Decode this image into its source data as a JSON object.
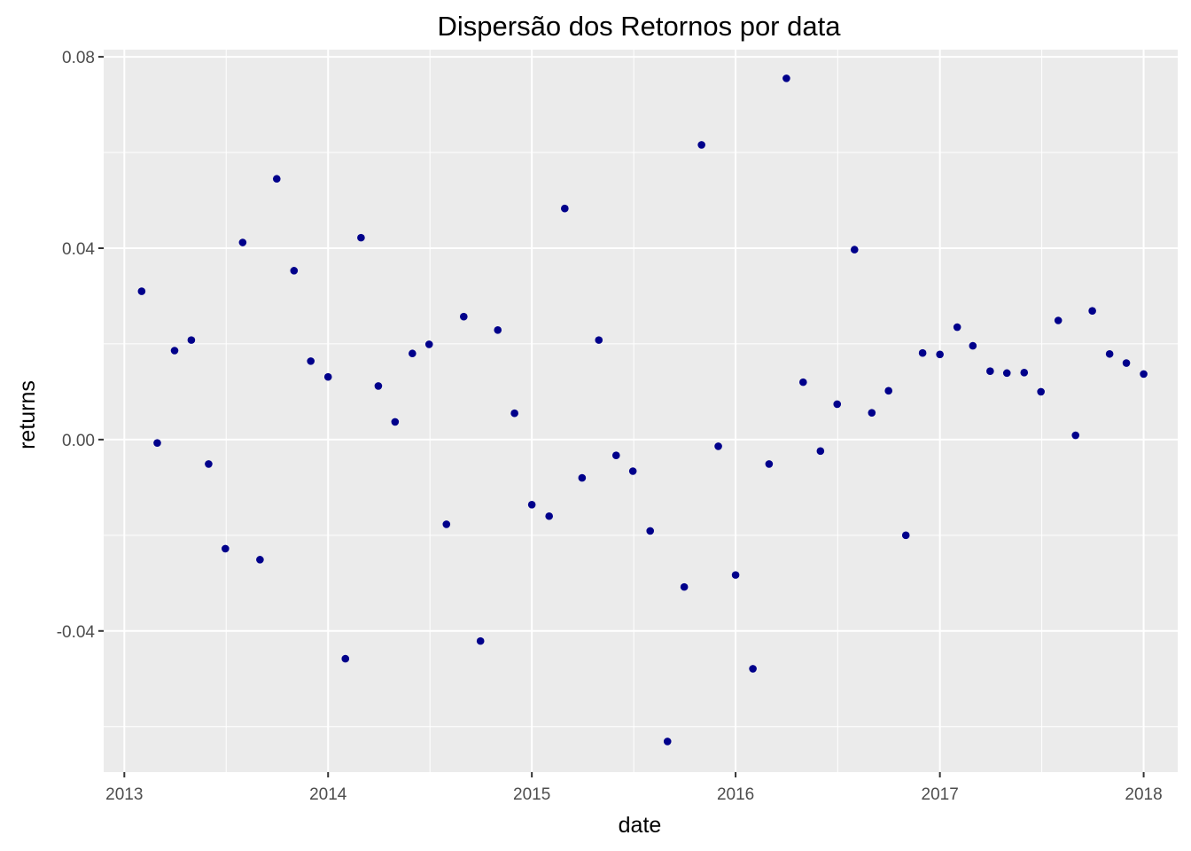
{
  "chart_data": {
    "type": "scatter",
    "title": "Dispersão dos Retornos por data",
    "xlabel": "date",
    "ylabel": "returns",
    "x_axis_type": "date",
    "xlim": [
      "2012-11-25",
      "2018-03-03"
    ],
    "ylim": [
      -0.0695,
      0.0815
    ],
    "x_ticks": [
      {
        "value": "2013-01-01",
        "label": "2013"
      },
      {
        "value": "2014-01-01",
        "label": "2014"
      },
      {
        "value": "2015-01-01",
        "label": "2015"
      },
      {
        "value": "2016-01-01",
        "label": "2016"
      },
      {
        "value": "2017-01-01",
        "label": "2017"
      },
      {
        "value": "2018-01-01",
        "label": "2018"
      }
    ],
    "y_ticks": [
      {
        "value": 0.08,
        "label": "0.08"
      },
      {
        "value": 0.04,
        "label": "0.04"
      },
      {
        "value": 0.0,
        "label": "0.00"
      },
      {
        "value": -0.04,
        "label": "-0.04"
      }
    ],
    "grid": true,
    "point_color": "#00008b",
    "panel_color": "#ebebeb",
    "grid_color": "#ffffff",
    "points": [
      {
        "x": "2013-02-01",
        "y": 0.031
      },
      {
        "x": "2013-03-01",
        "y": -0.0007
      },
      {
        "x": "2013-04-01",
        "y": 0.0186
      },
      {
        "x": "2013-05-01",
        "y": 0.0208
      },
      {
        "x": "2013-06-01",
        "y": -0.0051
      },
      {
        "x": "2013-07-01",
        "y": -0.0228
      },
      {
        "x": "2013-08-01",
        "y": 0.0412
      },
      {
        "x": "2013-09-01",
        "y": -0.0251
      },
      {
        "x": "2013-10-01",
        "y": 0.0545
      },
      {
        "x": "2013-11-01",
        "y": 0.0353
      },
      {
        "x": "2013-12-01",
        "y": 0.0164
      },
      {
        "x": "2014-01-01",
        "y": 0.0131
      },
      {
        "x": "2014-02-01",
        "y": -0.0458
      },
      {
        "x": "2014-03-01",
        "y": 0.0422
      },
      {
        "x": "2014-04-01",
        "y": 0.0112
      },
      {
        "x": "2014-05-01",
        "y": 0.0037
      },
      {
        "x": "2014-06-01",
        "y": 0.018
      },
      {
        "x": "2014-07-01",
        "y": 0.0199
      },
      {
        "x": "2014-08-01",
        "y": -0.0177
      },
      {
        "x": "2014-09-01",
        "y": 0.0257
      },
      {
        "x": "2014-10-01",
        "y": -0.0421
      },
      {
        "x": "2014-11-01",
        "y": 0.0229
      },
      {
        "x": "2014-12-01",
        "y": 0.0055
      },
      {
        "x": "2015-01-01",
        "y": -0.0136
      },
      {
        "x": "2015-02-01",
        "y": -0.016
      },
      {
        "x": "2015-03-01",
        "y": 0.0483
      },
      {
        "x": "2015-04-01",
        "y": -0.008
      },
      {
        "x": "2015-05-01",
        "y": 0.0208
      },
      {
        "x": "2015-06-01",
        "y": -0.0033
      },
      {
        "x": "2015-07-01",
        "y": -0.0066
      },
      {
        "x": "2015-08-01",
        "y": -0.0191
      },
      {
        "x": "2015-09-01",
        "y": -0.0631
      },
      {
        "x": "2015-10-01",
        "y": -0.0308
      },
      {
        "x": "2015-11-01",
        "y": 0.0616
      },
      {
        "x": "2015-12-01",
        "y": -0.0014
      },
      {
        "x": "2016-01-01",
        "y": -0.0283
      },
      {
        "x": "2016-02-01",
        "y": -0.0479
      },
      {
        "x": "2016-03-01",
        "y": -0.0051
      },
      {
        "x": "2016-04-01",
        "y": 0.0755
      },
      {
        "x": "2016-05-01",
        "y": 0.012
      },
      {
        "x": "2016-06-01",
        "y": -0.0024
      },
      {
        "x": "2016-07-01",
        "y": 0.0074
      },
      {
        "x": "2016-08-01",
        "y": 0.0397
      },
      {
        "x": "2016-09-01",
        "y": 0.0056
      },
      {
        "x": "2016-10-01",
        "y": 0.0102
      },
      {
        "x": "2016-11-01",
        "y": -0.02
      },
      {
        "x": "2016-12-01",
        "y": 0.0181
      },
      {
        "x": "2017-01-01",
        "y": 0.0178
      },
      {
        "x": "2017-02-01",
        "y": 0.0235
      },
      {
        "x": "2017-03-01",
        "y": 0.0196
      },
      {
        "x": "2017-04-01",
        "y": 0.0143
      },
      {
        "x": "2017-05-01",
        "y": 0.0139
      },
      {
        "x": "2017-06-01",
        "y": 0.014
      },
      {
        "x": "2017-07-01",
        "y": 0.01
      },
      {
        "x": "2017-08-01",
        "y": 0.0249
      },
      {
        "x": "2017-09-01",
        "y": 0.0009
      },
      {
        "x": "2017-10-01",
        "y": 0.0269
      },
      {
        "x": "2017-11-01",
        "y": 0.0179
      },
      {
        "x": "2017-12-01",
        "y": 0.016
      },
      {
        "x": "2018-01-01",
        "y": 0.0137
      }
    ]
  }
}
